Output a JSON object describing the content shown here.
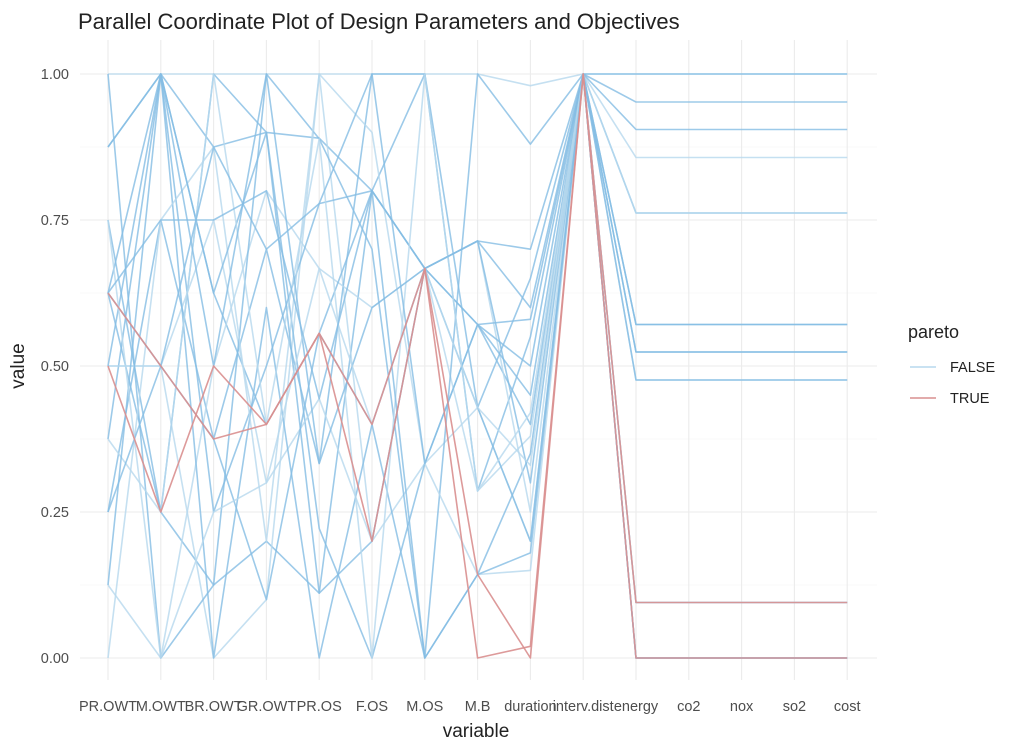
{
  "chart_data": {
    "type": "parallel_coordinates",
    "title": "Parallel Coordinate Plot of Design Parameters and Objectives",
    "xlabel": "variable",
    "ylabel": "value",
    "ylim": [
      0,
      1
    ],
    "y_ticks": [
      "0.00",
      "0.25",
      "0.50",
      "0.75",
      "1.00"
    ],
    "y_tick_values": [
      0,
      0.25,
      0.5,
      0.75,
      1
    ],
    "variables": [
      "PR.OWT",
      "M.OWT",
      "BR.OWT",
      "GR.OWT",
      "PR.OS",
      "F.OS",
      "M.OS",
      "M.B",
      "duration",
      "interv.dist",
      "energy",
      "co2",
      "nox",
      "so2",
      "cost"
    ],
    "grid": "on",
    "legend": {
      "title": "pareto",
      "placement": "right",
      "entries": [
        {
          "label": "FALSE",
          "color": "#9ecae1"
        },
        {
          "label": "TRUE",
          "color": "#e08a8a"
        }
      ]
    },
    "colors": {
      "false_line": "#85bde4",
      "false_light": "#b7d8ee",
      "true_line": "#d98f8f"
    },
    "series": [
      {
        "pareto": "FALSE",
        "values": [
          1.0,
          1.0,
          1.0,
          1.0,
          1.0,
          1.0,
          1.0,
          1.0,
          0.98,
          1.0,
          1.0,
          1.0,
          1.0,
          1.0,
          1.0
        ]
      },
      {
        "pareto": "FALSE",
        "values": [
          0.875,
          1.0,
          0.875,
          0.9,
          0.89,
          0.8,
          0.667,
          0.714,
          0.6,
          1.0,
          0.952,
          0.952,
          0.952,
          0.952,
          0.952
        ]
      },
      {
        "pareto": "FALSE",
        "values": [
          0.625,
          0.25,
          0.125,
          0.2,
          0.111,
          0.8,
          0.667,
          0.571,
          0.4,
          1.0,
          0.762,
          0.762,
          0.762,
          0.762,
          0.762
        ]
      },
      {
        "pareto": "FALSE",
        "values": [
          0.5,
          0.5,
          0.0,
          0.1,
          1.0,
          0.2,
          0.333,
          0.429,
          0.2,
          1.0,
          0.476,
          0.476,
          0.476,
          0.476,
          0.476
        ]
      },
      {
        "pareto": "FALSE",
        "values": [
          0.375,
          1.0,
          0.625,
          0.4,
          0.556,
          0.4,
          0.0,
          0.143,
          0.35,
          1.0,
          0.524,
          0.524,
          0.524,
          0.524,
          0.524
        ]
      },
      {
        "pareto": "FALSE",
        "values": [
          0.25,
          0.75,
          0.375,
          0.7,
          0.333,
          1.0,
          1.0,
          0.286,
          0.55,
          1.0,
          0.571,
          0.571,
          0.571,
          0.571,
          0.571
        ]
      },
      {
        "pareto": "FALSE",
        "values": [
          0.125,
          0.0,
          0.5,
          0.8,
          0.667,
          0.6,
          0.667,
          0.714,
          0.25,
          1.0,
          0.095,
          0.095,
          0.095,
          0.095,
          0.095
        ]
      },
      {
        "pareto": "FALSE",
        "values": [
          0.75,
          0.25,
          1.0,
          0.9,
          0.222,
          0.0,
          0.333,
          0.571,
          0.45,
          1.0,
          0.0,
          0.0,
          0.0,
          0.0,
          0.0
        ]
      },
      {
        "pareto": "FALSE",
        "values": [
          0.625,
          1.0,
          0.25,
          0.5,
          0.778,
          0.8,
          1.0,
          0.429,
          0.65,
          1.0,
          0.0,
          0.0,
          0.0,
          0.0,
          0.0
        ]
      },
      {
        "pareto": "FALSE",
        "values": [
          0.5,
          0.5,
          0.75,
          0.3,
          0.444,
          0.2,
          0.667,
          0.286,
          0.38,
          1.0,
          0.857,
          0.857,
          0.857,
          0.857,
          0.857
        ]
      },
      {
        "pareto": "FALSE",
        "values": [
          1.0,
          0.0,
          0.125,
          1.0,
          0.889,
          0.7,
          0.0,
          1.0,
          0.88,
          1.0,
          0.905,
          0.905,
          0.905,
          0.905,
          0.905
        ]
      },
      {
        "pareto": "FALSE",
        "values": [
          0.875,
          1.0,
          0.0,
          0.6,
          0.0,
          0.4,
          0.667,
          0.714,
          0.3,
          1.0,
          0.095,
          0.095,
          0.095,
          0.095,
          0.095
        ]
      },
      {
        "pareto": "FALSE",
        "values": [
          0.0,
          0.75,
          0.875,
          0.2,
          1.0,
          0.9,
          0.333,
          0.143,
          0.15,
          1.0,
          0.0,
          0.0,
          0.0,
          0.0,
          0.0
        ]
      },
      {
        "pareto": "FALSE",
        "values": [
          0.625,
          0.5,
          0.375,
          0.1,
          0.556,
          0.8,
          0.667,
          0.571,
          0.5,
          1.0,
          0.524,
          0.524,
          0.524,
          0.524,
          0.524
        ]
      },
      {
        "pareto": "FALSE",
        "values": [
          0.5,
          1.0,
          0.625,
          0.9,
          0.111,
          0.2,
          0.667,
          0.429,
          0.2,
          1.0,
          0.476,
          0.476,
          0.476,
          0.476,
          0.476
        ]
      },
      {
        "pareto": "FALSE",
        "values": [
          0.375,
          0.25,
          1.0,
          0.4,
          0.889,
          0.0,
          1.0,
          0.286,
          0.42,
          1.0,
          0.762,
          0.762,
          0.762,
          0.762,
          0.762
        ]
      },
      {
        "pareto": "FALSE",
        "values": [
          0.125,
          1.0,
          0.5,
          1.0,
          0.333,
          0.6,
          0.667,
          0.714,
          0.7,
          1.0,
          0.571,
          0.571,
          0.571,
          0.571,
          0.571
        ]
      },
      {
        "pareto": "FALSE",
        "values": [
          0.25,
          0.5,
          0.875,
          0.7,
          0.778,
          1.0,
          0.333,
          0.571,
          0.58,
          1.0,
          0.0,
          0.0,
          0.0,
          0.0,
          0.0
        ]
      },
      {
        "pareto": "FALSE",
        "values": [
          0.75,
          0.0,
          0.25,
          0.3,
          0.667,
          0.4,
          0.667,
          0.429,
          0.33,
          1.0,
          0.095,
          0.095,
          0.095,
          0.095,
          0.095
        ]
      },
      {
        "pareto": "FALSE",
        "values": [
          0.625,
          0.75,
          0.75,
          0.8,
          0.444,
          0.8,
          0.0,
          0.143,
          0.18,
          1.0,
          1.0,
          1.0,
          1.0,
          1.0,
          1.0
        ]
      },
      {
        "pareto": "TRUE",
        "values": [
          0.5,
          0.25,
          0.5,
          0.4,
          0.556,
          0.2,
          0.667,
          0.0,
          0.02,
          1.0,
          0.0,
          0.0,
          0.0,
          0.0,
          0.0
        ]
      },
      {
        "pareto": "TRUE",
        "values": [
          0.625,
          0.5,
          0.375,
          0.4,
          0.556,
          0.4,
          0.667,
          0.143,
          0.0,
          1.0,
          0.095,
          0.095,
          0.095,
          0.095,
          0.095
        ]
      }
    ]
  }
}
